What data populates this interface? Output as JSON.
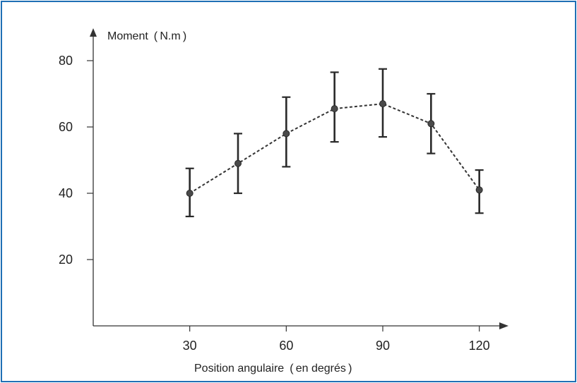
{
  "chart_data": {
    "type": "scatter",
    "ylabel": "Moment ( N.m )",
    "xlabel": "Position angulaire ( en degrés )",
    "x_ticks": [
      30,
      60,
      90,
      120
    ],
    "y_ticks": [
      20,
      40,
      60,
      80
    ],
    "x_tick_labels": [
      "30",
      "60",
      "90",
      "120"
    ],
    "y_tick_labels": [
      "20",
      "40",
      "60",
      "80"
    ],
    "xlim": [
      0,
      130
    ],
    "ylim": [
      0,
      85
    ],
    "grid": false,
    "series": [
      {
        "x": [
          30,
          45,
          60,
          75,
          90,
          105,
          120
        ],
        "y": [
          40,
          49,
          58,
          65.5,
          67,
          61,
          41
        ],
        "err_low": [
          33,
          40,
          48,
          55.5,
          57,
          52,
          34
        ],
        "err_high": [
          47.5,
          58,
          69,
          76.5,
          77.5,
          70,
          47
        ],
        "line_style": "dashed",
        "color": "#333333"
      }
    ]
  }
}
